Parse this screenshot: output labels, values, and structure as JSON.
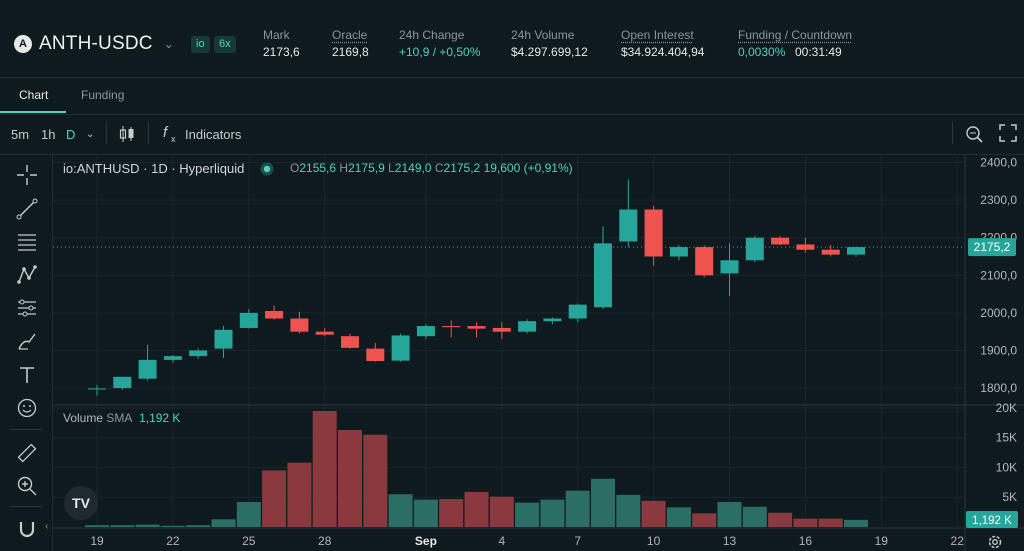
{
  "header": {
    "symbol": "ANTH-USDC",
    "icon": "symbol-logo-icon",
    "badges": [
      "io",
      "6x"
    ],
    "stats": [
      {
        "label": "Mark",
        "value": "2173,6"
      },
      {
        "label": "Oracle",
        "value": "2169,8"
      },
      {
        "label": "24h Change",
        "value": "+10,9 / +0,50%"
      },
      {
        "label": "24h Volume",
        "value": "$4.297.699,12"
      },
      {
        "label": "Open Interest",
        "value": "$34.924.404,94"
      },
      {
        "label": "Funding / Countdown",
        "value": "0,0030%",
        "value2": "00:31:49"
      }
    ]
  },
  "tabs": [
    "Chart",
    "Funding"
  ],
  "toolbar": {
    "intervals": [
      "5m",
      "1h",
      "D"
    ],
    "selected_interval": "D",
    "indicators_label": "Indicators",
    "fx_label": "f"
  },
  "legend": {
    "title": "io:ANTHUSD · 1D · Hyperliquid",
    "o_label": "O",
    "o": "2155,6",
    "h_label": "H",
    "h": "2175,9",
    "l_label": "L",
    "l": "2149,0",
    "c_label": "C",
    "c": "2175,2",
    "change": "19,600 (+0,91%)"
  },
  "volume_legend": {
    "label": "Volume",
    "sma_label": "SMA",
    "value": "1,192 K"
  },
  "colors": {
    "up": "#26a69a",
    "down": "#ef5350",
    "accent": "#50d2c1",
    "vol_up": "#2b6e66",
    "vol_down": "#8a3a3e"
  },
  "chart_data": {
    "type": "candlestick",
    "price_axis": {
      "ticks": [
        1800,
        1900,
        2000,
        2100,
        2200,
        2300,
        2400
      ],
      "tick_labels": [
        "1800,0",
        "1900,0",
        "2000,0",
        "2100,0",
        "2200,0",
        "2300,0",
        "2400,0"
      ],
      "range": [
        1755,
        2420
      ]
    },
    "last_price_label": "2175,2",
    "last_volume_label": "1,192 K",
    "volume_axis": {
      "ticks": [
        5,
        10,
        15,
        20
      ],
      "tick_labels": [
        "5K",
        "10K",
        "15K",
        "20K"
      ],
      "range": [
        0,
        20.5
      ]
    },
    "x_tick_labels": [
      {
        "label": "19",
        "index": 0
      },
      {
        "label": "22",
        "index": 3
      },
      {
        "label": "25",
        "index": 6
      },
      {
        "label": "28",
        "index": 9
      },
      {
        "label": "Sep",
        "index": 13
      },
      {
        "label": "4",
        "index": 16
      },
      {
        "label": "7",
        "index": 19
      },
      {
        "label": "10",
        "index": 22
      },
      {
        "label": "13",
        "index": 25
      },
      {
        "label": "16",
        "index": 28
      },
      {
        "label": "19",
        "index": 31
      },
      {
        "label": "22",
        "index": 34
      }
    ],
    "candles": [
      {
        "o": 1798,
        "h": 1808,
        "l": 1780,
        "c": 1799,
        "v": 0.3
      },
      {
        "o": 1800,
        "h": 1830,
        "l": 1795,
        "c": 1830,
        "v": 0.3
      },
      {
        "o": 1825,
        "h": 1915,
        "l": 1820,
        "c": 1875,
        "v": 0.4
      },
      {
        "o": 1875,
        "h": 1888,
        "l": 1868,
        "c": 1885,
        "v": 0.2
      },
      {
        "o": 1885,
        "h": 1905,
        "l": 1878,
        "c": 1900,
        "v": 0.3
      },
      {
        "o": 1905,
        "h": 1965,
        "l": 1880,
        "c": 1955,
        "v": 1.3
      },
      {
        "o": 1960,
        "h": 2010,
        "l": 1958,
        "c": 2000,
        "v": 4.2
      },
      {
        "o": 2005,
        "h": 2020,
        "l": 1982,
        "c": 1985,
        "v": 9.5
      },
      {
        "o": 1985,
        "h": 2003,
        "l": 1945,
        "c": 1950,
        "v": 10.8
      },
      {
        "o": 1950,
        "h": 1960,
        "l": 1938,
        "c": 1942,
        "v": 19.5
      },
      {
        "o": 1938,
        "h": 1945,
        "l": 1905,
        "c": 1907,
        "v": 16.3
      },
      {
        "o": 1905,
        "h": 1920,
        "l": 1870,
        "c": 1872,
        "v": 15.5
      },
      {
        "o": 1873,
        "h": 1945,
        "l": 1870,
        "c": 1940,
        "v": 5.5
      },
      {
        "o": 1938,
        "h": 1970,
        "l": 1930,
        "c": 1965,
        "v": 4.6
      },
      {
        "o": 1965,
        "h": 1980,
        "l": 1935,
        "c": 1962,
        "v": 4.7
      },
      {
        "o": 1965,
        "h": 1975,
        "l": 1935,
        "c": 1958,
        "v": 5.9
      },
      {
        "o": 1960,
        "h": 1975,
        "l": 1930,
        "c": 1950,
        "v": 5.1
      },
      {
        "o": 1950,
        "h": 1983,
        "l": 1945,
        "c": 1978,
        "v": 4.1
      },
      {
        "o": 1978,
        "h": 1988,
        "l": 1970,
        "c": 1985,
        "v": 4.6
      },
      {
        "o": 1985,
        "h": 2025,
        "l": 1975,
        "c": 2022,
        "v": 6.1
      },
      {
        "o": 2015,
        "h": 2230,
        "l": 2010,
        "c": 2185,
        "v": 8.1
      },
      {
        "o": 2190,
        "h": 2355,
        "l": 2175,
        "c": 2275,
        "v": 5.4
      },
      {
        "o": 2275,
        "h": 2285,
        "l": 2125,
        "c": 2150,
        "v": 4.4
      },
      {
        "o": 2150,
        "h": 2180,
        "l": 2140,
        "c": 2175,
        "v": 3.3
      },
      {
        "o": 2175,
        "h": 2180,
        "l": 2095,
        "c": 2100,
        "v": 2.3
      },
      {
        "o": 2105,
        "h": 2185,
        "l": 2045,
        "c": 2140,
        "v": 4.2
      },
      {
        "o": 2140,
        "h": 2205,
        "l": 2135,
        "c": 2200,
        "v": 3.4
      },
      {
        "o": 2200,
        "h": 2205,
        "l": 2180,
        "c": 2182,
        "v": 2.4
      },
      {
        "o": 2182,
        "h": 2200,
        "l": 2160,
        "c": 2168,
        "v": 1.4
      },
      {
        "o": 2168,
        "h": 2180,
        "l": 2150,
        "c": 2155,
        "v": 1.4
      },
      {
        "o": 2155,
        "h": 2176,
        "l": 2149,
        "c": 2175,
        "v": 1.2
      }
    ]
  }
}
